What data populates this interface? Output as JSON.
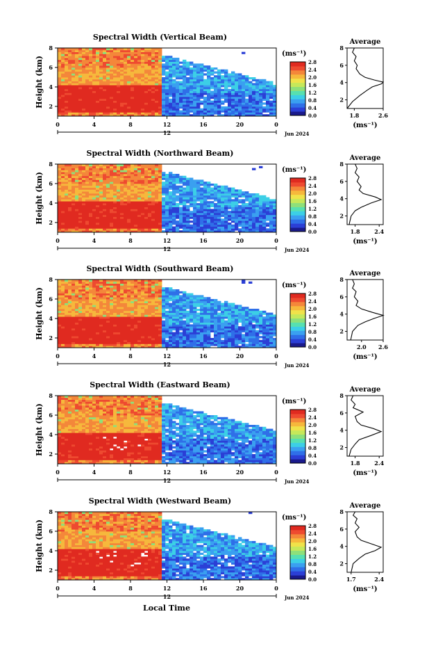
{
  "figure": {
    "xlabel_bottom": "Local Time"
  },
  "colorscale": {
    "colors": [
      "#1a1a8c",
      "#2b3fd6",
      "#2f6fe8",
      "#3aa0f0",
      "#3ccfe6",
      "#57e0b0",
      "#8ee07a",
      "#c6e85a",
      "#f0e24a",
      "#f6b83c",
      "#f4873a",
      "#ee4a30",
      "#e02a20"
    ]
  },
  "chart_data": [
    {
      "type": "heatmap",
      "title": "Spectral Width (Vertical Beam)",
      "ylabel": "Height (km)",
      "xticks": [
        "0",
        "4",
        "8",
        "12",
        "16",
        "20",
        "0"
      ],
      "xlim": [
        0,
        24
      ],
      "ylim": [
        1,
        8
      ],
      "yticks": [
        "2",
        "4",
        "6",
        "8"
      ],
      "date_label": "12",
      "date_suffix": "Jun 2024",
      "colorbar": {
        "unit": "(ms⁻¹)",
        "ticks": [
          "2.8",
          "2.4",
          "2.0",
          "1.6",
          "1.2",
          "0.8",
          "0.4",
          "0.0"
        ]
      },
      "average": {
        "title": "Average",
        "xlabel": "(ms⁻¹)",
        "xticks": [
          "1.8",
          "2.6"
        ],
        "xlim": [
          1.6,
          2.6
        ],
        "yticks": [
          "2",
          "4",
          "6",
          "8"
        ],
        "ylim": [
          1,
          8
        ],
        "profile": [
          [
            1.6,
            1.0
          ],
          [
            1.75,
            1.8
          ],
          [
            1.95,
            2.5
          ],
          [
            2.15,
            3.1
          ],
          [
            2.3,
            3.5
          ],
          [
            2.55,
            3.85
          ],
          [
            2.6,
            4.05
          ],
          [
            2.35,
            4.3
          ],
          [
            2.1,
            4.6
          ],
          [
            1.95,
            5.0
          ],
          [
            1.85,
            5.6
          ],
          [
            1.88,
            6.0
          ],
          [
            1.8,
            6.5
          ],
          [
            1.85,
            7.0
          ],
          [
            1.75,
            7.5
          ],
          [
            1.8,
            8.0
          ]
        ]
      }
    },
    {
      "type": "heatmap",
      "title": "Spectral Width (Northward Beam)",
      "ylabel": "Height (km)",
      "xticks": [
        "0",
        "4",
        "8",
        "12",
        "16",
        "20",
        "0"
      ],
      "xlim": [
        0,
        24
      ],
      "ylim": [
        1,
        8
      ],
      "yticks": [
        "2",
        "4",
        "6",
        "8"
      ],
      "date_label": "12",
      "date_suffix": "Jun 2024",
      "colorbar": {
        "unit": "(ms⁻¹)",
        "ticks": [
          "2.8",
          "2.4",
          "2.0",
          "1.6",
          "1.2",
          "0.8",
          "0.4",
          "0.0"
        ]
      },
      "average": {
        "title": "Average",
        "xlabel": "(ms⁻¹)",
        "xticks": [
          "1.8",
          "2.4"
        ],
        "xlim": [
          1.6,
          2.5
        ],
        "yticks": [
          "2",
          "4",
          "6",
          "8"
        ],
        "ylim": [
          1,
          8
        ],
        "profile": [
          [
            1.65,
            1.0
          ],
          [
            1.7,
            2.0
          ],
          [
            1.8,
            2.6
          ],
          [
            1.95,
            3.0
          ],
          [
            2.2,
            3.5
          ],
          [
            2.45,
            3.9
          ],
          [
            2.3,
            4.2
          ],
          [
            2.0,
            4.6
          ],
          [
            1.9,
            5.0
          ],
          [
            1.95,
            5.4
          ],
          [
            1.85,
            6.0
          ],
          [
            1.9,
            6.5
          ],
          [
            1.8,
            7.0
          ],
          [
            1.85,
            7.5
          ],
          [
            1.8,
            8.0
          ]
        ]
      }
    },
    {
      "type": "heatmap",
      "title": "Spectral Width (Southward Beam)",
      "ylabel": "Height (km)",
      "xticks": [
        "0",
        "4",
        "8",
        "12",
        "16",
        "20",
        "0"
      ],
      "xlim": [
        0,
        24
      ],
      "ylim": [
        1,
        8
      ],
      "yticks": [
        "2",
        "4",
        "6",
        "8"
      ],
      "date_label": "12",
      "date_suffix": "Jun 2024",
      "colorbar": {
        "unit": "(ms⁻¹)",
        "ticks": [
          "2.8",
          "2.4",
          "2.0",
          "1.6",
          "1.2",
          "0.8",
          "0.4",
          "0.0"
        ]
      },
      "average": {
        "title": "Average",
        "xlabel": "(ms⁻¹)",
        "xticks": [
          "2.0",
          "2.6"
        ],
        "xlim": [
          1.6,
          2.6
        ],
        "yticks": [
          "2",
          "4",
          "6",
          "8"
        ],
        "ylim": [
          1,
          8
        ],
        "profile": [
          [
            1.7,
            1.0
          ],
          [
            1.75,
            2.0
          ],
          [
            1.9,
            2.7
          ],
          [
            2.1,
            3.1
          ],
          [
            2.35,
            3.5
          ],
          [
            2.6,
            3.85
          ],
          [
            2.3,
            4.2
          ],
          [
            2.0,
            4.6
          ],
          [
            1.85,
            5.0
          ],
          [
            1.9,
            5.5
          ],
          [
            1.8,
            6.0
          ],
          [
            1.85,
            6.6
          ],
          [
            1.75,
            7.0
          ],
          [
            1.8,
            7.5
          ],
          [
            1.75,
            8.0
          ]
        ]
      }
    },
    {
      "type": "heatmap",
      "title": "Spectral Width (Eastward Beam)",
      "ylabel": "Height (km)",
      "xticks": [
        "0",
        "4",
        "8",
        "12",
        "16",
        "20",
        "0"
      ],
      "xlim": [
        0,
        24
      ],
      "ylim": [
        1,
        8
      ],
      "yticks": [
        "2",
        "4",
        "6",
        "8"
      ],
      "date_label": "12",
      "date_suffix": "Jun 2024",
      "colorbar": {
        "unit": "(ms⁻¹)",
        "ticks": [
          "2.8",
          "2.4",
          "2.0",
          "1.6",
          "1.2",
          "0.8",
          "0.4",
          "0.0"
        ]
      },
      "average": {
        "title": "Average",
        "xlabel": "(ms⁻¹)",
        "xticks": [
          "1.8",
          "2.4"
        ],
        "xlim": [
          1.6,
          2.5
        ],
        "yticks": [
          "2",
          "4",
          "6",
          "8"
        ],
        "ylim": [
          1,
          8
        ],
        "profile": [
          [
            1.65,
            1.0
          ],
          [
            1.7,
            1.8
          ],
          [
            1.8,
            2.4
          ],
          [
            1.9,
            2.9
          ],
          [
            2.2,
            3.4
          ],
          [
            2.45,
            3.85
          ],
          [
            2.25,
            4.2
          ],
          [
            1.95,
            4.6
          ],
          [
            1.85,
            5.0
          ],
          [
            1.8,
            5.6
          ],
          [
            2.0,
            6.1
          ],
          [
            1.75,
            6.6
          ],
          [
            1.8,
            7.0
          ],
          [
            1.7,
            7.5
          ],
          [
            1.75,
            8.0
          ]
        ]
      }
    },
    {
      "type": "heatmap",
      "title": "Spectral Width (Westward Beam)",
      "ylabel": "Height (km)",
      "xticks": [
        "0",
        "4",
        "8",
        "12",
        "16",
        "20",
        "0"
      ],
      "xlim": [
        0,
        24
      ],
      "ylim": [
        1,
        8
      ],
      "yticks": [
        "2",
        "4",
        "6",
        "8"
      ],
      "date_label": "12",
      "date_suffix": "Jun 2024",
      "colorbar": {
        "unit": "(ms⁻¹)",
        "ticks": [
          "2.8",
          "2.4",
          "2.0",
          "1.6",
          "1.2",
          "0.8",
          "0.4",
          "0.0"
        ]
      },
      "average": {
        "title": "Average",
        "xlabel": "(ms⁻¹)",
        "xticks": [
          "1.7",
          "2.4"
        ],
        "xlim": [
          1.6,
          2.5
        ],
        "yticks": [
          "2",
          "4",
          "6",
          "8"
        ],
        "ylim": [
          1,
          8
        ],
        "profile": [
          [
            1.7,
            1.0
          ],
          [
            1.75,
            2.0
          ],
          [
            1.9,
            2.6
          ],
          [
            2.05,
            3.1
          ],
          [
            2.3,
            3.5
          ],
          [
            2.45,
            3.9
          ],
          [
            2.2,
            4.3
          ],
          [
            1.95,
            4.7
          ],
          [
            1.85,
            5.1
          ],
          [
            1.8,
            5.7
          ],
          [
            1.9,
            6.2
          ],
          [
            1.8,
            6.7
          ],
          [
            1.85,
            7.2
          ],
          [
            1.75,
            7.6
          ],
          [
            1.8,
            8.0
          ]
        ]
      }
    }
  ]
}
